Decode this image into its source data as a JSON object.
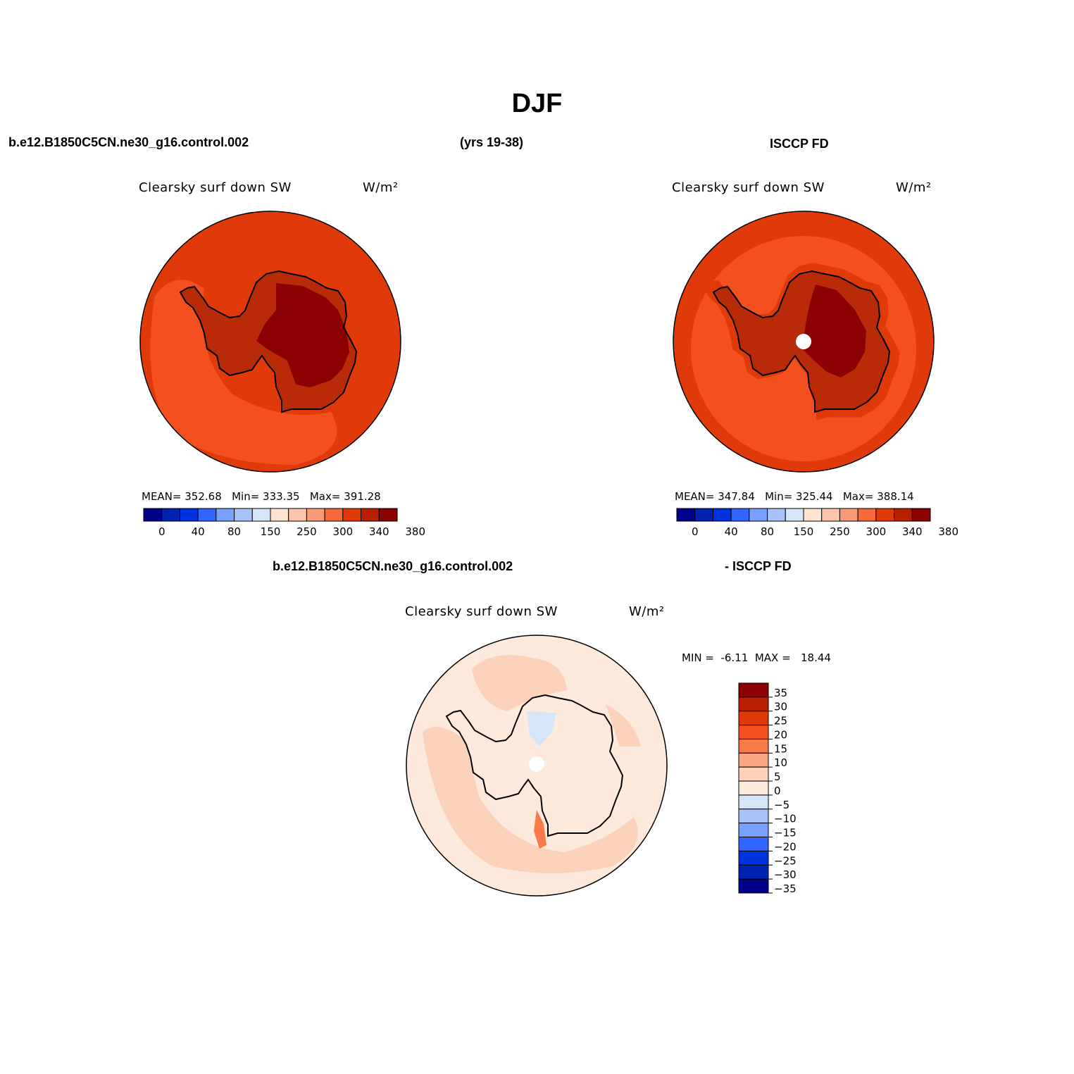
{
  "title": "DJF",
  "header": {
    "case": "b.e12.B1850C5CN.ne30_g16.control.002",
    "years": "(yrs 19-38)",
    "obs": "ISCCP FD"
  },
  "panels": [
    {
      "id": "model",
      "title": "Clearsky surf down SW",
      "units": "W/m²",
      "stats": {
        "mean_label": "MEAN=",
        "mean": "352.68",
        "min_label": "Min=",
        "min": "333.35",
        "max_label": "Max=",
        "max": "391.28"
      }
    },
    {
      "id": "obs",
      "title": "Clearsky surf down SW",
      "units": "W/m²",
      "stats": {
        "mean_label": "MEAN=",
        "mean": "347.84",
        "min_label": "Min=",
        "min": "325.44",
        "max_label": "Max=",
        "max": "388.14"
      }
    },
    {
      "id": "diff",
      "header_left": "b.e12.B1850C5CN.ne30_g16.control.002",
      "header_right": "- ISCCP FD",
      "title": "Clearsky surf down SW",
      "units": "W/m²",
      "stats": {
        "min_label": "MIN =",
        "min": "-6.11",
        "max_label": "MAX =",
        "max": "18.44"
      }
    }
  ],
  "colorbar_main": {
    "colors": [
      "#00008b",
      "#0022b0",
      "#0033dd",
      "#3366ff",
      "#77a0ff",
      "#a8c2f5",
      "#d6e6f8",
      "#fde3d0",
      "#fbc6ad",
      "#f89a78",
      "#f46a3a",
      "#e03a0a",
      "#b81e00",
      "#8b0000"
    ],
    "tick_labels": [
      "0",
      "40",
      "80",
      "150",
      "250",
      "300",
      "340",
      "380"
    ]
  },
  "colorbar_diff": {
    "colors": [
      "#8b0000",
      "#b81e00",
      "#e03a0a",
      "#f4501f",
      "#f87a48",
      "#fba582",
      "#fdd2bb",
      "#feeadc",
      "#d6e6f8",
      "#a8c2f5",
      "#77a0ff",
      "#3366ff",
      "#0033dd",
      "#0022b0",
      "#00008b"
    ],
    "tick_labels": [
      "35",
      "30",
      "25",
      "20",
      "15",
      "10",
      "5",
      "0",
      "−5",
      "−10",
      "−15",
      "−20",
      "−25",
      "−30",
      "−35"
    ]
  },
  "map_colors": {
    "ocean_outer": "#e03a0a",
    "ocean_mid": "#f4501f",
    "coast_band": "#c82a05",
    "interior": "#8b0000",
    "diff_bg": "#feeadc",
    "diff_pos": "#fdd2bb",
    "diff_high": "#f87a48",
    "diff_neg": "#d6e6f8"
  }
}
